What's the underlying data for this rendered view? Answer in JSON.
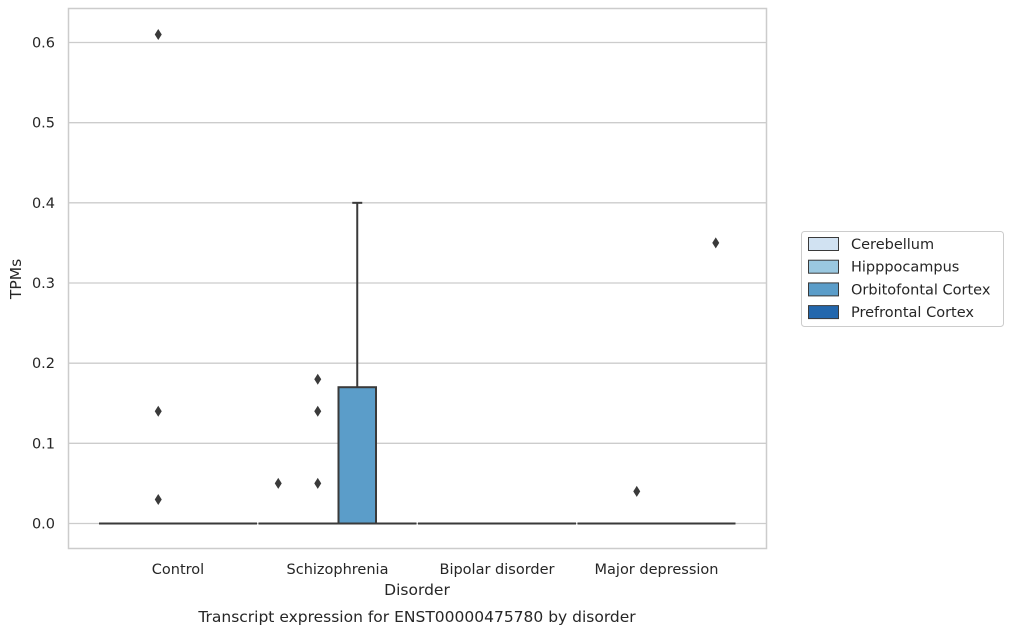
{
  "chart_data": {
    "type": "boxplot",
    "title": "",
    "caption": "Transcript expression for ENST00000475780 by disorder",
    "xlabel": "Disorder",
    "ylabel": "TPMs",
    "ylim": [
      -0.03,
      0.64
    ],
    "yticks": [
      0.0,
      0.1,
      0.2,
      0.3,
      0.4,
      0.5,
      0.6
    ],
    "ytick_labels": [
      "0.0",
      "0.1",
      "0.2",
      "0.3",
      "0.4",
      "0.5",
      "0.6"
    ],
    "grid": true,
    "legend_position": "right",
    "categories": [
      "Control",
      "Schizophrenia",
      "Bipolar disorder",
      "Major depression"
    ],
    "hue_levels": [
      {
        "name": "Cerebellum",
        "color": "#d1e2f2"
      },
      {
        "name": "Hipppocampus",
        "color": "#9ac8e0"
      },
      {
        "name": "Orbitofontal Cortex",
        "color": "#5b9dc9"
      },
      {
        "name": "Prefrontal Cortex",
        "color": "#2367ad"
      }
    ],
    "boxes": [
      {
        "category": "Control",
        "hue": "Cerebellum",
        "q1": 0,
        "median": 0,
        "q3": 0,
        "whisker_low": 0,
        "whisker_high": 0,
        "fliers": []
      },
      {
        "category": "Control",
        "hue": "Hipppocampus",
        "q1": 0,
        "median": 0,
        "q3": 0,
        "whisker_low": 0,
        "whisker_high": 0,
        "fliers": [
          0.03,
          0.14,
          0.61
        ]
      },
      {
        "category": "Control",
        "hue": "Orbitofontal Cortex",
        "q1": 0,
        "median": 0,
        "q3": 0,
        "whisker_low": 0,
        "whisker_high": 0,
        "fliers": []
      },
      {
        "category": "Control",
        "hue": "Prefrontal Cortex",
        "q1": 0,
        "median": 0,
        "q3": 0,
        "whisker_low": 0,
        "whisker_high": 0,
        "fliers": []
      },
      {
        "category": "Schizophrenia",
        "hue": "Cerebellum",
        "q1": 0,
        "median": 0,
        "q3": 0,
        "whisker_low": 0,
        "whisker_high": 0,
        "fliers": [
          0.05
        ]
      },
      {
        "category": "Schizophrenia",
        "hue": "Hipppocampus",
        "q1": 0,
        "median": 0,
        "q3": 0,
        "whisker_low": 0,
        "whisker_high": 0,
        "fliers": [
          0.05,
          0.14,
          0.18
        ]
      },
      {
        "category": "Schizophrenia",
        "hue": "Orbitofontal Cortex",
        "q1": 0,
        "median": 0,
        "q3": 0.17,
        "whisker_low": 0,
        "whisker_high": 0.4,
        "fliers": []
      },
      {
        "category": "Schizophrenia",
        "hue": "Prefrontal Cortex",
        "q1": 0,
        "median": 0,
        "q3": 0,
        "whisker_low": 0,
        "whisker_high": 0,
        "fliers": []
      },
      {
        "category": "Bipolar disorder",
        "hue": "Cerebellum",
        "q1": 0,
        "median": 0,
        "q3": 0,
        "whisker_low": 0,
        "whisker_high": 0,
        "fliers": []
      },
      {
        "category": "Bipolar disorder",
        "hue": "Hipppocampus",
        "q1": 0,
        "median": 0,
        "q3": 0,
        "whisker_low": 0,
        "whisker_high": 0,
        "fliers": []
      },
      {
        "category": "Bipolar disorder",
        "hue": "Orbitofontal Cortex",
        "q1": 0,
        "median": 0,
        "q3": 0,
        "whisker_low": 0,
        "whisker_high": 0,
        "fliers": []
      },
      {
        "category": "Bipolar disorder",
        "hue": "Prefrontal Cortex",
        "q1": 0,
        "median": 0,
        "q3": 0,
        "whisker_low": 0,
        "whisker_high": 0,
        "fliers": []
      },
      {
        "category": "Major depression",
        "hue": "Cerebellum",
        "q1": 0,
        "median": 0,
        "q3": 0,
        "whisker_low": 0,
        "whisker_high": 0,
        "fliers": []
      },
      {
        "category": "Major depression",
        "hue": "Hipppocampus",
        "q1": 0,
        "median": 0,
        "q3": 0,
        "whisker_low": 0,
        "whisker_high": 0,
        "fliers": [
          0.04
        ]
      },
      {
        "category": "Major depression",
        "hue": "Orbitofontal Cortex",
        "q1": 0,
        "median": 0,
        "q3": 0,
        "whisker_low": 0,
        "whisker_high": 0,
        "fliers": []
      },
      {
        "category": "Major depression",
        "hue": "Prefrontal Cortex",
        "q1": 0,
        "median": 0,
        "q3": 0,
        "whisker_low": 0,
        "whisker_high": 0,
        "fliers": [
          0.35
        ]
      }
    ]
  }
}
